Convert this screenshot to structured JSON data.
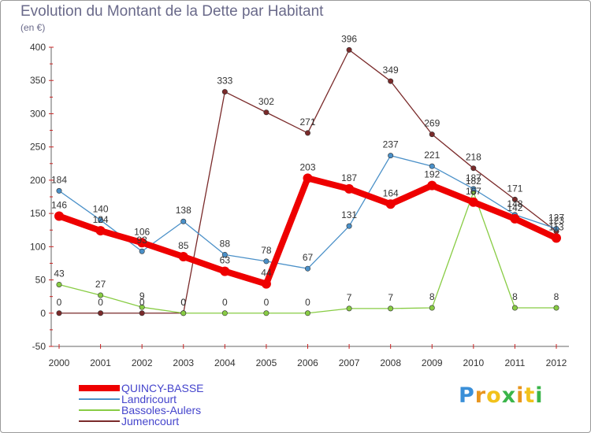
{
  "header": {
    "title": "Evolution du Montant de la Dette par Habitant",
    "unit": "(en €)"
  },
  "chart_data": {
    "type": "line",
    "title": "Evolution du Montant de la Dette par Habitant",
    "ylabel": "(en €)",
    "xlabel": "",
    "ylim": [
      -50,
      400
    ],
    "yticks": [
      -50,
      0,
      50,
      100,
      150,
      200,
      250,
      300,
      350,
      400
    ],
    "grid": false,
    "legend_position": "bottom",
    "x": [
      "2000",
      "2001",
      "2002",
      "2003",
      "2004",
      "2005",
      "2006",
      "2007",
      "2008",
      "2009",
      "2010",
      "2011",
      "2012"
    ],
    "series": [
      {
        "name": "Jumencourt",
        "color": "#7a2a2a",
        "values": [
          0,
          0,
          0,
          0,
          333,
          302,
          271,
          396,
          349,
          269,
          218,
          171,
          123
        ]
      },
      {
        "name": "Bassoles-Aulers",
        "color": "#88cc44",
        "values": [
          43,
          27,
          9,
          0,
          0,
          0,
          0,
          7,
          7,
          8,
          182,
          8,
          8
        ]
      },
      {
        "name": "Landricourt",
        "color": "#4a90c8",
        "values": [
          184,
          140,
          93,
          138,
          88,
          78,
          67,
          131,
          237,
          221,
          187,
          148,
          127
        ]
      },
      {
        "name": "QUINCY-BASSE",
        "color": "#ee0000",
        "values": [
          146,
          124,
          106,
          85,
          63,
          44,
          203,
          187,
          164,
          192,
          167,
          142,
          113
        ]
      }
    ]
  },
  "legend": {
    "items": [
      {
        "name": "QUINCY-BASSE",
        "color": "#ee0000"
      },
      {
        "name": "Landricourt",
        "color": "#4a90c8"
      },
      {
        "name": "Bassoles-Aulers",
        "color": "#88cc44"
      },
      {
        "name": "Jumencourt",
        "color": "#7a2a2a"
      }
    ]
  },
  "branding": {
    "logo_text": "Proxiti",
    "letters": [
      "P",
      "r",
      "o",
      "x",
      "i",
      "t",
      "i"
    ],
    "letter_colors": [
      "#3a8fd8",
      "#e8951e",
      "#f2c21b",
      "#3ab54a",
      "#e8951e",
      "#f2c21b",
      "#3ab54a"
    ]
  }
}
